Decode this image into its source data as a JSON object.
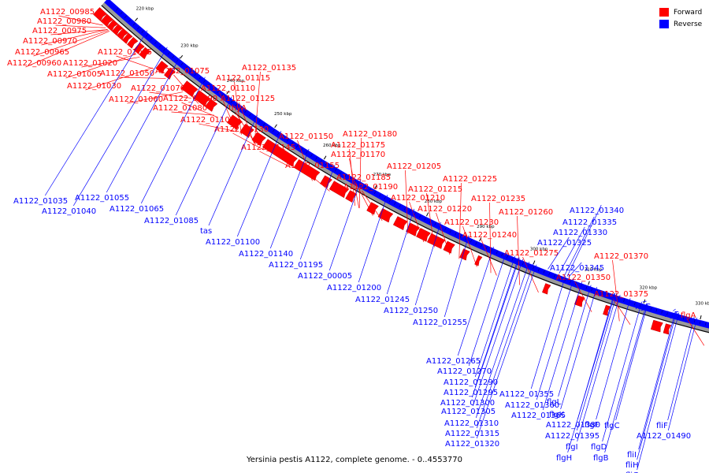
{
  "legend": {
    "forward": {
      "label": "Forward",
      "color": "#ff0000"
    },
    "reverse": {
      "label": "Reverse",
      "color": "#0000ff"
    }
  },
  "caption": "Yersinia pestis A1122, complete genome. - 0..4553770",
  "ticks": [
    "220 kbp",
    "230 kbp",
    "240 kbp",
    "250 kbp",
    "260 kbp",
    "270 kbp",
    "280 kbp",
    "290 kbp",
    "300 kbp",
    "310 kbp",
    "320 kbp",
    "330 kbp"
  ],
  "forward_labels": [
    "A1122_00985",
    "A1122_00980",
    "A1122_00975",
    "A1122_00970",
    "A1122_00965",
    "A1122_00960",
    "A1122_01020",
    "A1122_01005",
    "A1122_01030",
    "A1122_01045",
    "A1122_01050",
    "A1122_01060",
    "A1122_01070",
    "A1122_01075",
    "A1122_01080",
    "A1122_01090",
    "A1122_01105",
    "A1122_01110",
    "A1122_01115",
    "A1122_01125",
    "A1122_01130",
    "A1122_01135",
    "thyA",
    "A1122_01145",
    "A1122_01150",
    "A1122_01155",
    "A1122_01170",
    "A1122_01175",
    "A1122_01180",
    "A1122_01185",
    "A1122_01190",
    "A1122_01205",
    "A1122_01210",
    "A1122_01215",
    "A1122_01220",
    "A1122_01225",
    "A1122_01230",
    "A1122_01235",
    "A1122_01240",
    "A1122_01260",
    "A1122_01275",
    "A1122_01350",
    "A1122_01370",
    "A1122_01375",
    "flgA"
  ],
  "reverse_labels": [
    "A1122_01035",
    "A1122_01040",
    "A1122_01055",
    "A1122_01065",
    "A1122_01085",
    "tas",
    "A1122_01100",
    "A1122_01140",
    "A1122_01195",
    "A1122_00005",
    "A1122_01200",
    "A1122_01245",
    "A1122_01250",
    "A1122_01255",
    "A1122_01265",
    "A1122_01270",
    "A1122_01290",
    "A1122_01295",
    "A1122_01300",
    "A1122_01305",
    "A1122_01310",
    "A1122_01315",
    "A1122_01320",
    "A1122_01325",
    "A1122_01330",
    "A1122_01335",
    "A1122_01340",
    "A1122_01345",
    "A1122_01355",
    "A1122_01360",
    "A1122_01365",
    "A1122_01380",
    "A1122_01395",
    "A1122_01490",
    "flgG",
    "flgE",
    "flgL",
    "flgK",
    "flgF",
    "flgC",
    "flgD",
    "flgI",
    "flgH",
    "flgB",
    "fliF",
    "fliI",
    "fliH",
    "fliG"
  ]
}
